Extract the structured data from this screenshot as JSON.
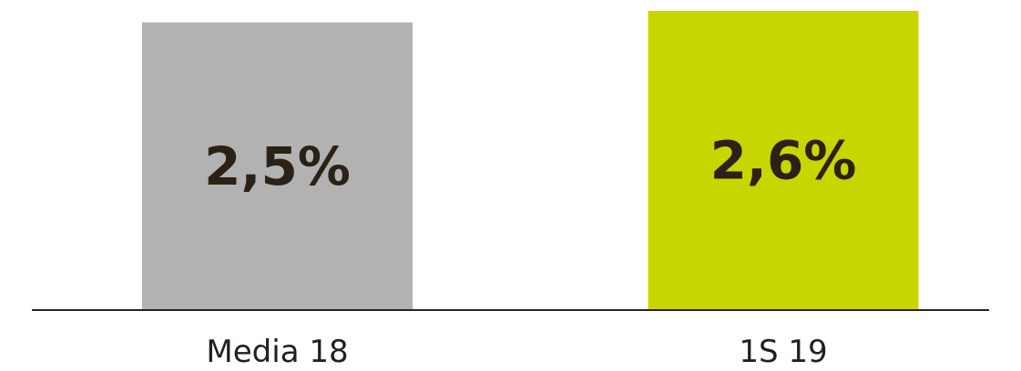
{
  "chart_data": {
    "type": "bar",
    "categories": [
      "Media 18",
      "1S 19"
    ],
    "values": [
      2.5,
      2.6
    ],
    "value_labels": [
      "2,5%",
      "2,6%"
    ],
    "colors": [
      "#b2b2b2",
      "#c8d600"
    ],
    "axis_color": "#2b2117",
    "title": "",
    "xlabel": "",
    "ylabel": "",
    "grid": false,
    "legend": "none"
  }
}
